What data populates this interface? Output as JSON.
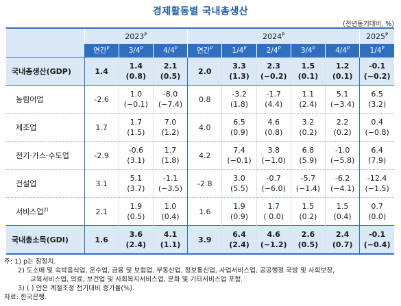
{
  "title": "경제활동별 국내총생산",
  "unit": "(전년동기대비, %)",
  "header": {
    "groups": [
      {
        "label": "2023",
        "sup": "P"
      },
      {
        "label": "2024",
        "sup": "P"
      },
      {
        "label": "2025",
        "sup": "P"
      }
    ],
    "cols": [
      {
        "label": "연간",
        "sup": "P"
      },
      {
        "label": "3/4",
        "sup": "P"
      },
      {
        "label": "4/4",
        "sup": "P"
      },
      {
        "label": "연간",
        "sup": "P"
      },
      {
        "label": "1/4",
        "sup": "P"
      },
      {
        "label": "2/4",
        "sup": "P"
      },
      {
        "label": "3/4",
        "sup": "P"
      },
      {
        "label": "4/4",
        "sup": "P"
      },
      {
        "label": "1/4",
        "sup": "P"
      }
    ]
  },
  "rows": [
    {
      "label": "국내총생산(GDP)",
      "sup": "",
      "top": [
        "1.4",
        "1.4",
        "2.1",
        "2.0",
        "3.3",
        "2.3",
        "1.5",
        "1.2",
        "-0.1"
      ],
      "sub": [
        "",
        "(0.8)",
        "(0.5)",
        "",
        "(1.3)",
        "(−0.2)",
        "(0.1)",
        "(0.1)",
        "(−0.2)"
      ]
    },
    {
      "label": "농림어업",
      "sup": "",
      "top": [
        "-2.6",
        "1.0",
        "-8.0",
        "0.8",
        "-3.2",
        "-1.7",
        "1.1",
        "5.1",
        "6.5"
      ],
      "sub": [
        "",
        "(−0.1)",
        "(−7.4)",
        "",
        "(1.8)",
        "(4.4)",
        "(2.4)",
        "(−3.4)",
        "(3.2)"
      ]
    },
    {
      "label": "제조업",
      "sup": "",
      "top": [
        "1.7",
        "1.7",
        "7.0",
        "4.0",
        "6.5",
        "4.6",
        "3.2",
        "2.2",
        "0.4"
      ],
      "sub": [
        "",
        "(1.5)",
        "(1.2)",
        "",
        "(0.9)",
        "(0.8)",
        "(0.2)",
        "(0.2)",
        "(−0.8)"
      ]
    },
    {
      "label": "전기·가스·수도업",
      "sup": "",
      "top": [
        "-2.9",
        "-0.6",
        "1.7",
        "4.2",
        "7.4",
        "3.8",
        "6.8",
        "-1.0",
        "6.4"
      ],
      "sub": [
        "",
        "(3.1)",
        "(1.8)",
        "",
        "(−0.1)",
        "(−1.0)",
        "(5.9)",
        "(−5.8)",
        "(7.9)"
      ]
    },
    {
      "label": "건설업",
      "sup": "",
      "top": [
        "3.1",
        "5.1",
        "-1.1",
        "-2.8",
        "3.0",
        "-0.7",
        "-5.7",
        "-6.2",
        "-12.4"
      ],
      "sub": [
        "",
        "(3.7)",
        "(−3.5)",
        "",
        "(5.5)",
        "(−6.0)",
        "(−1.4)",
        "(−4.1)",
        "(−1.5)"
      ]
    },
    {
      "label": "서비스업",
      "sup": "2)",
      "top": [
        "2.1",
        "1.9",
        "1.0",
        "1.6",
        "1.9",
        "1.7",
        "1.5",
        "1.5",
        "0.7"
      ],
      "sub": [
        "",
        "(0.5)",
        "(0.4)",
        "",
        "(0.9)",
        "( 0.0)",
        "(0.2)",
        "(0.4)",
        "(0.0)"
      ]
    },
    {
      "label": "국내총소득(GDI)",
      "sup": "",
      "top": [
        "1.6",
        "3.6",
        "4.1",
        "3.9",
        "6.4",
        "4.6",
        "2.6",
        "2.4",
        "-0.1"
      ],
      "sub": [
        "",
        "(2.4)",
        "(1.1)",
        "",
        "(2.4)",
        "(−1.2)",
        "(0.5)",
        "(0.7)",
        "(−0.4)"
      ]
    }
  ],
  "notes": [
    "주: 1) p는 잠정치.",
    "2) 도소매 및 숙박음식업, 운수업, 금융 및 보험업, 부동산업, 정보통신업, 사업서비스업, 공공행정 국방 및 사회보장,",
    "교육서비스업, 의료, 보건업 및 사회복지서비스업, 문화 및 기타서비스업 포함.",
    "3) ( ) 안은 계절조정 전기대비 증가율(%).",
    "자료: 한국은행."
  ]
}
